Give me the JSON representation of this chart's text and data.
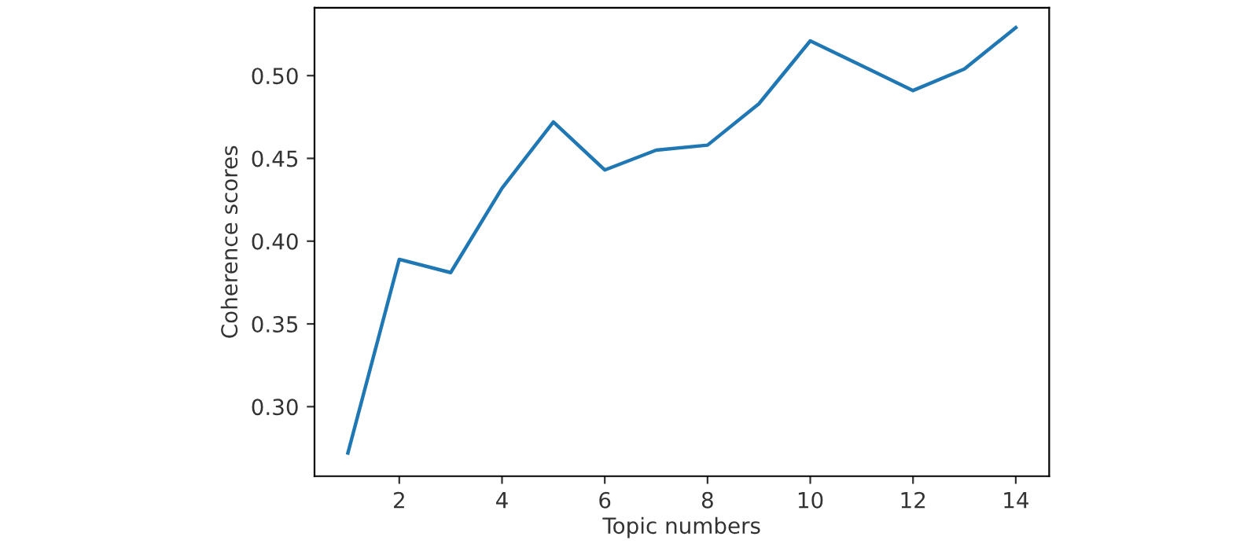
{
  "chart_data": {
    "type": "line",
    "xlabel": "Topic numbers",
    "ylabel": "Coherence scores",
    "x": [
      1,
      2,
      3,
      4,
      5,
      6,
      7,
      8,
      9,
      10,
      11,
      12,
      13,
      14
    ],
    "series": [
      {
        "color": "#1f77b4",
        "values": [
          0.272,
          0.389,
          0.381,
          0.432,
          0.472,
          0.443,
          0.455,
          0.458,
          0.483,
          0.521,
          0.506,
          0.491,
          0.504,
          0.529
        ]
      }
    ],
    "xlim": [
      0.35,
      14.65
    ],
    "ylim": [
      0.258,
      0.541
    ],
    "xticks": [
      2,
      4,
      6,
      8,
      10,
      12,
      14
    ],
    "yticks": [
      {
        "value": 0.3,
        "label": "0.30"
      },
      {
        "value": 0.35,
        "label": "0.35"
      },
      {
        "value": 0.4,
        "label": "0.40"
      },
      {
        "value": 0.45,
        "label": "0.45"
      },
      {
        "value": 0.5,
        "label": "0.50"
      }
    ],
    "grid": false
  }
}
